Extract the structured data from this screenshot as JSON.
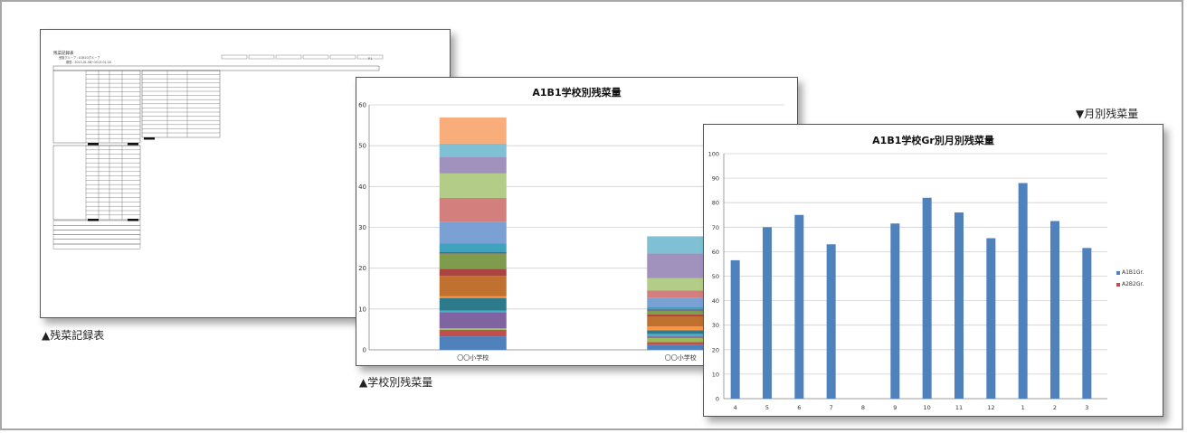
{
  "captions": {
    "record_sheet": "▲残菜記録表",
    "school_chart": "▲学校別残菜量",
    "month_chart": "▼月別残菜量"
  },
  "record_sheet": {
    "title": "残菜記録表",
    "group_line": "受取グループ : A1B1Gグループ",
    "period_line": "期間 : 2013-01-08～2013-01-18",
    "page_mark": "P.1"
  },
  "school_chart": {
    "chart_data": {
      "type": "bar",
      "stacked": true,
      "title": "A1B1学校別残菜量",
      "categories": [
        "〇〇小学校",
        "〇〇小学校"
      ],
      "ylim": [
        0,
        60
      ],
      "yticks": [
        0,
        10,
        20,
        30,
        40,
        50,
        60
      ],
      "grid": true,
      "series": [
        {
          "color": "#4f81bd",
          "values": [
            3.3,
            1.3
          ]
        },
        {
          "color": "#c0504d",
          "values": [
            1.6,
            0.6
          ]
        },
        {
          "color": "#9bbb59",
          "values": [
            0.4,
            1.0
          ]
        },
        {
          "color": "#8064a2",
          "values": [
            3.9,
            0.4
          ]
        },
        {
          "color": "#4bacc6",
          "values": [
            0.4,
            0.6
          ]
        },
        {
          "color": "#2c7a8c",
          "values": [
            3.1,
            0.9
          ]
        },
        {
          "color": "#f79646",
          "values": [
            0.4,
            0.9
          ]
        },
        {
          "color": "#c0702f",
          "values": [
            5.0,
            2.5
          ]
        },
        {
          "color": "#a94440",
          "values": [
            1.7,
            0.5
          ]
        },
        {
          "color": "#7e9c4b",
          "values": [
            3.8,
            0.9
          ]
        },
        {
          "color": "#5f4b8b",
          "values": [
            0.3,
            0.3
          ]
        },
        {
          "color": "#3fa3bd",
          "values": [
            2.2,
            0.6
          ]
        },
        {
          "color": "#7aa0d4",
          "values": [
            5.3,
            2.3
          ]
        },
        {
          "color": "#d27f7d",
          "values": [
            5.8,
            1.7
          ]
        },
        {
          "color": "#b3cc87",
          "values": [
            6.0,
            3.1
          ]
        },
        {
          "color": "#a092bd",
          "values": [
            4.1,
            6.0
          ]
        },
        {
          "color": "#7fc0d4",
          "values": [
            3.2,
            4.2
          ]
        },
        {
          "color": "#f8ad7a",
          "values": [
            6.4,
            0
          ]
        }
      ]
    }
  },
  "month_chart": {
    "chart_data": {
      "type": "bar",
      "title": "A1B1学校Gr別月別残菜量",
      "categories": [
        "4",
        "5",
        "6",
        "7",
        "8",
        "9",
        "10",
        "11",
        "12",
        "1",
        "2",
        "3"
      ],
      "ylim": [
        0,
        100
      ],
      "yticks": [
        0,
        10,
        20,
        30,
        40,
        50,
        60,
        70,
        80,
        90,
        100
      ],
      "grid": true,
      "legend_position": "right",
      "series": [
        {
          "name": "A1B1Gr.",
          "color": "#4f81bd",
          "values": [
            56.5,
            70,
            75,
            63,
            0,
            71.5,
            82,
            76,
            65.5,
            88,
            72.5,
            61.5
          ]
        },
        {
          "name": "A2B2Gr.",
          "color": "#c0504d",
          "values": [
            0,
            0,
            0,
            0,
            0,
            0,
            0,
            0,
            0,
            0,
            0,
            0
          ]
        }
      ]
    }
  }
}
